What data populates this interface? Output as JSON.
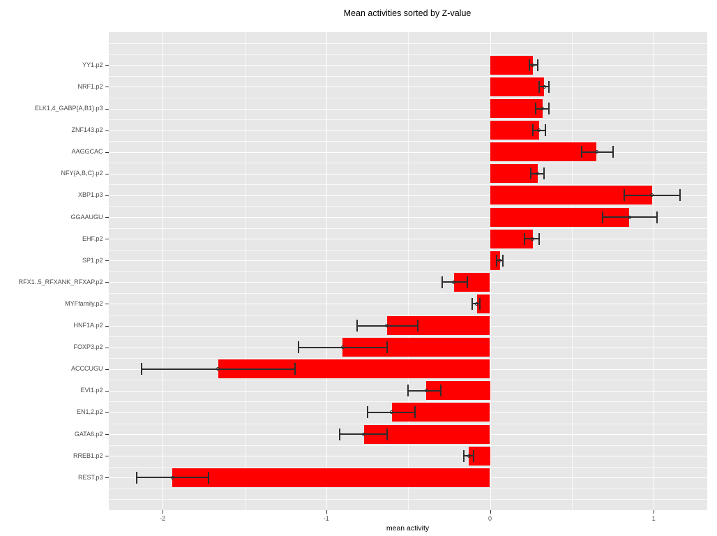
{
  "chart_data": {
    "type": "bar",
    "orientation": "horizontal",
    "title": "Mean activities sorted by Z-value",
    "xlabel": "mean activity",
    "ylabel": "",
    "xlim": [
      -2.33,
      1.33
    ],
    "x_ticks": [
      -2,
      -1,
      0,
      1
    ],
    "x_tick_labels": [
      "-2",
      "-1",
      "0",
      "1"
    ],
    "x_minor_gridlines": [
      -1.5,
      -0.5,
      0.5
    ],
    "grid": true,
    "legend": false,
    "categories_top_to_bottom": [
      "YY1.p2",
      "NRF1.p2",
      "ELK1,4_GABP{A,B1}.p3",
      "ZNF143.p2",
      "AAGGCAC",
      "NFY{A,B,C}.p2",
      "XBP1.p3",
      "GGAAUGU",
      "EHF.p2",
      "SP1.p2",
      "RFX1..5_RFXANK_RFXAP.p2",
      "MYFfamily.p2",
      "HNF1A.p2",
      "FOXP3.p2",
      "ACCCUGU",
      "EVI1.p2",
      "EN1,2.p2",
      "GATA6.p2",
      "RREB1.p2",
      "REST.p3"
    ],
    "values": [
      0.26,
      0.33,
      0.32,
      0.3,
      0.65,
      0.29,
      0.99,
      0.85,
      0.26,
      0.06,
      -0.22,
      -0.08,
      -0.63,
      -0.9,
      -1.66,
      -0.39,
      -0.6,
      -0.77,
      -0.13,
      -1.94
    ],
    "error_low": [
      0.24,
      0.3,
      0.28,
      0.26,
      0.56,
      0.25,
      0.82,
      0.69,
      0.21,
      0.04,
      -0.29,
      -0.11,
      -0.81,
      -1.17,
      -2.13,
      -0.5,
      -0.75,
      -0.92,
      -0.16,
      -2.16
    ],
    "error_high": [
      0.29,
      0.36,
      0.36,
      0.34,
      0.75,
      0.33,
      1.16,
      1.02,
      0.3,
      0.08,
      -0.14,
      -0.06,
      -0.44,
      -0.63,
      -1.19,
      -0.3,
      -0.46,
      -0.63,
      -0.1,
      -1.72
    ],
    "colors": {
      "bar": "#FF0000",
      "panel_background": "#E7E7E7",
      "grid_major": "#FFFFFF",
      "errorbar": "#2E2E2E",
      "axis_text": "#4D4D4D",
      "tick_mark": "#333333",
      "title_text": "#000000"
    }
  }
}
